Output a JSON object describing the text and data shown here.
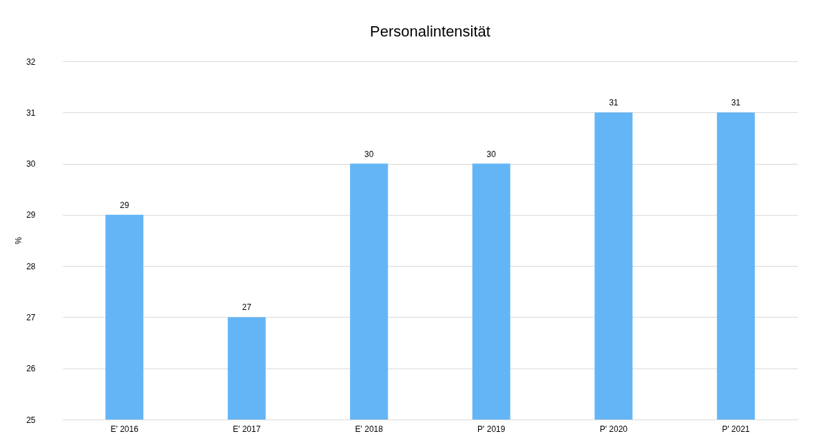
{
  "chart_data": {
    "type": "bar",
    "title": "Personalintensität",
    "ylabel": "%",
    "categories": [
      "E' 2016",
      "E' 2017",
      "E' 2018",
      "P' 2019",
      "P' 2020",
      "P' 2021"
    ],
    "values": [
      29,
      27,
      30,
      30,
      31,
      31
    ],
    "color": "#63b5f6",
    "ylim": [
      25,
      32
    ],
    "yticks": [
      25,
      26,
      27,
      28,
      29,
      30,
      31,
      32
    ],
    "grid": "y",
    "data_labels": true
  }
}
